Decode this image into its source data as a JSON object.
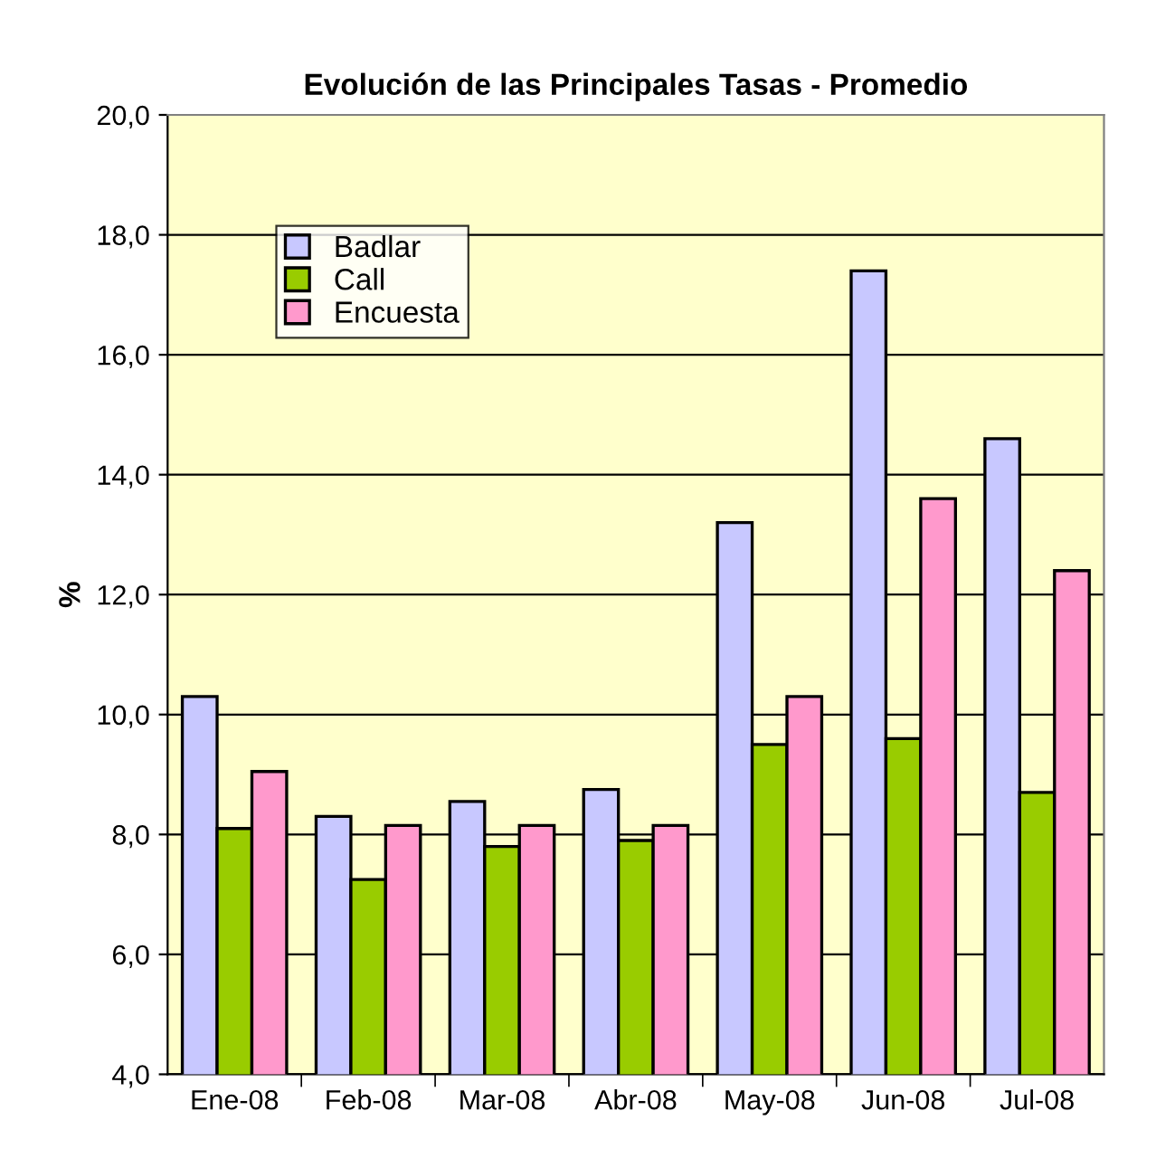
{
  "chart_data": {
    "type": "bar",
    "title": "Evolución de las Principales Tasas - Promedio",
    "ylabel": "%",
    "categories": [
      "Ene-08",
      "Feb-08",
      "Mar-08",
      "Abr-08",
      "May-08",
      "Jun-08",
      "Jul-08"
    ],
    "series": [
      {
        "name": "Badlar",
        "color": "#c8c8ff",
        "values": [
          10.3,
          8.3,
          8.55,
          8.75,
          13.2,
          17.4,
          14.6
        ]
      },
      {
        "name": "Call",
        "color": "#99cc00",
        "values": [
          8.1,
          7.25,
          7.8,
          7.9,
          9.5,
          9.6,
          8.7
        ]
      },
      {
        "name": "Encuesta",
        "color": "#ff99cc",
        "values": [
          9.05,
          8.15,
          8.15,
          8.15,
          10.3,
          13.6,
          12.4
        ]
      }
    ],
    "ylim": [
      4,
      20
    ],
    "yticks": [
      {
        "value": 4,
        "label": "4,0"
      },
      {
        "value": 6,
        "label": "6,0"
      },
      {
        "value": 8,
        "label": "8,0"
      },
      {
        "value": 10,
        "label": "10,0"
      },
      {
        "value": 12,
        "label": "12,0"
      },
      {
        "value": 14,
        "label": "14,0"
      },
      {
        "value": 16,
        "label": "16,0"
      },
      {
        "value": 18,
        "label": "18,0"
      },
      {
        "value": 20,
        "label": "20,0"
      }
    ],
    "grid": "y",
    "legend": "top left"
  }
}
